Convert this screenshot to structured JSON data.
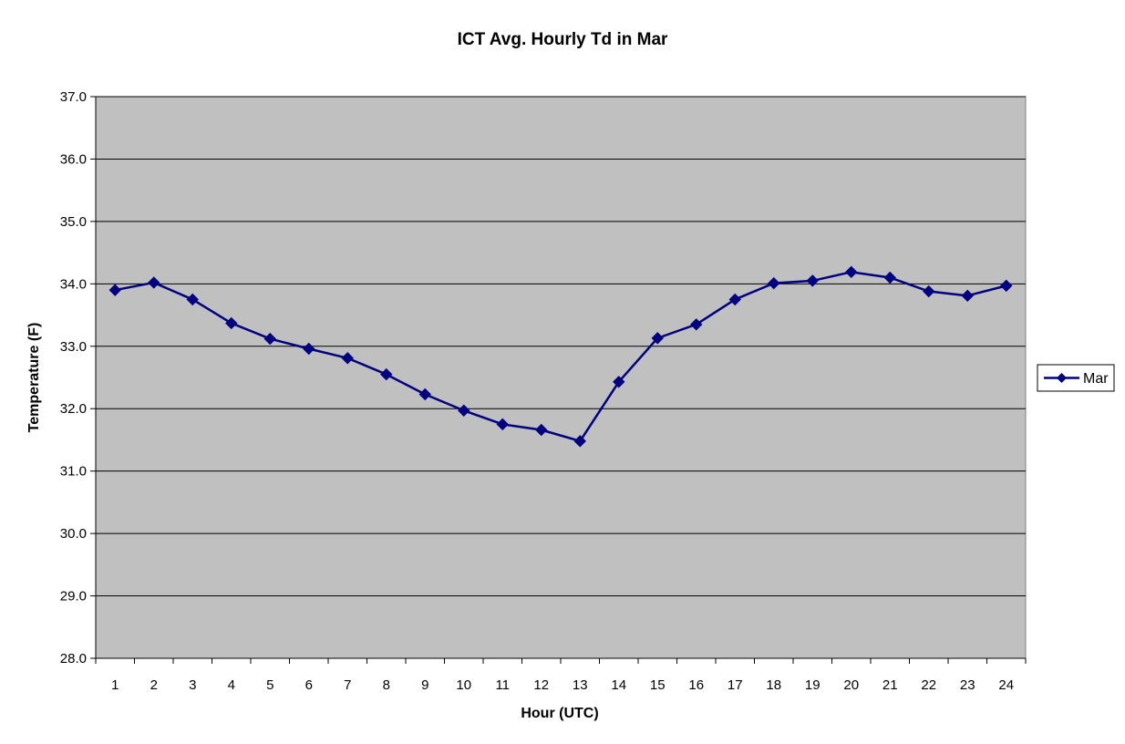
{
  "chart_data": {
    "type": "line",
    "title": "ICT Avg. Hourly Td in Mar",
    "xlabel": "Hour (UTC)",
    "ylabel": "Temperature (F)",
    "categories": [
      "1",
      "2",
      "3",
      "4",
      "5",
      "6",
      "7",
      "8",
      "9",
      "10",
      "11",
      "12",
      "13",
      "14",
      "15",
      "16",
      "17",
      "18",
      "19",
      "20",
      "21",
      "22",
      "23",
      "24"
    ],
    "yticks": [
      "28.0",
      "29.0",
      "30.0",
      "31.0",
      "32.0",
      "33.0",
      "34.0",
      "35.0",
      "36.0",
      "37.0"
    ],
    "ylim": [
      28,
      37
    ],
    "grid": true,
    "legend_position": "right",
    "series": [
      {
        "name": "Mar",
        "color": "#000080",
        "marker": "diamond",
        "values": [
          33.9,
          34.02,
          33.75,
          33.37,
          33.12,
          32.96,
          32.81,
          32.55,
          32.23,
          31.97,
          31.75,
          31.66,
          31.48,
          32.43,
          33.13,
          33.35,
          33.75,
          34.01,
          34.05,
          34.19,
          34.1,
          33.88,
          33.81,
          33.97
        ]
      }
    ],
    "plot_background": "#c0c0c0",
    "gridline_color": "#000000"
  }
}
